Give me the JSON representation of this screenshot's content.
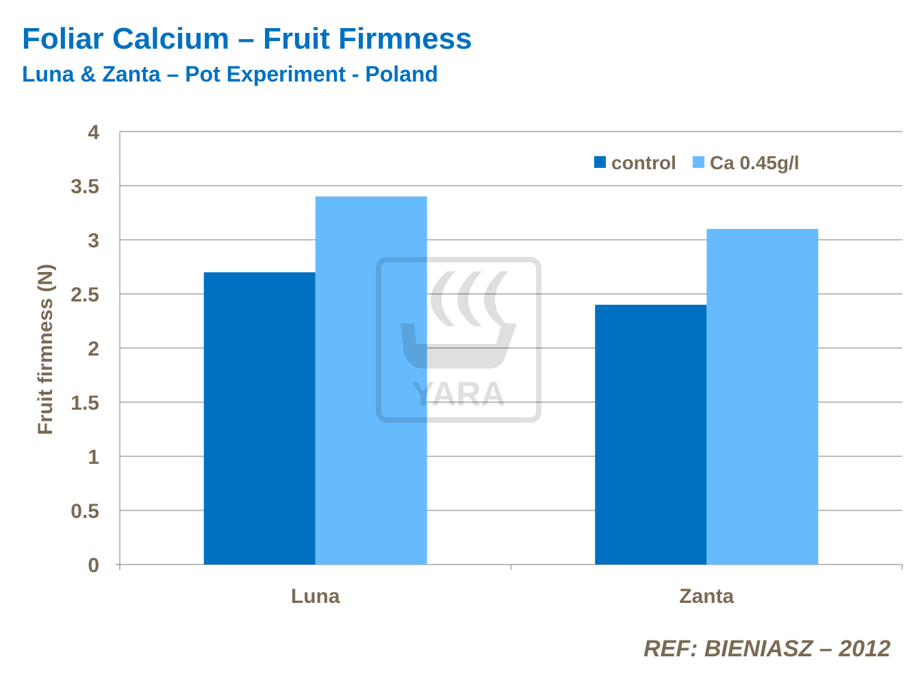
{
  "title": "Foliar Calcium – Fruit Firmness",
  "subtitle": "Luna & Zanta – Pot Experiment - Poland",
  "reference": "REF: BIENIASZ – 2012",
  "watermark": "YARA",
  "chart_data": {
    "type": "bar",
    "categories": [
      "Luna",
      "Zanta"
    ],
    "series": [
      {
        "name": "control",
        "values": [
          2.7,
          2.4
        ],
        "color": "#0070c0"
      },
      {
        "name": "Ca 0.45g/l",
        "values": [
          3.4,
          3.1
        ],
        "color": "#66bbff"
      }
    ],
    "ylabel": "Fruit firmness (N)",
    "xlabel": "",
    "ylim": [
      0,
      4
    ],
    "yticks": [
      "0",
      "0.5",
      "1",
      "1.5",
      "2",
      "2.5",
      "3",
      "3.5",
      "4"
    ],
    "grid": true,
    "legend_position": "top-right"
  }
}
